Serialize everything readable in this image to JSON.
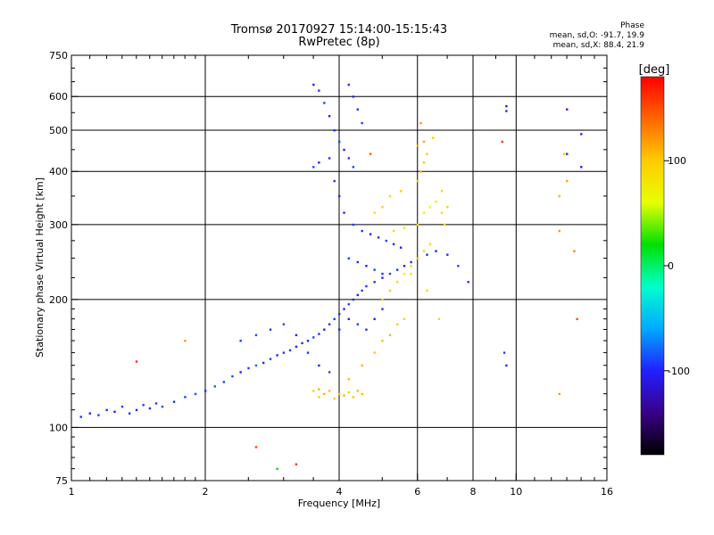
{
  "title": {
    "line1": "Tromsø 20170927 15:14:00-15:15:43",
    "line2": "RwPretec (8p)"
  },
  "phase_info": {
    "heading": "Phase",
    "stats_o": "mean, sd,O: -91.7, 19.9",
    "stats_x": "mean, sd,X: 88.4, 21.9"
  },
  "colorbar": {
    "unit_label": "[deg]",
    "range": [
      -180,
      180
    ],
    "ticks": [
      {
        "value": 100,
        "label": "100"
      },
      {
        "value": 0,
        "label": "0"
      },
      {
        "value": -100,
        "label": "-100"
      }
    ],
    "stops": [
      "#000000",
      "#3a0088",
      "#2020ff",
      "#00aaff",
      "#00ffcc",
      "#00e000",
      "#e6ff00",
      "#ffcc00",
      "#ff6600",
      "#ff0000"
    ]
  },
  "chart_data": {
    "type": "scatter",
    "title": "Tromsø 20170927 15:14:00-15:15:43",
    "subtitle": "RwPretec (8p)",
    "xlabel": "Frequency [MHz]",
    "ylabel": "Stationary phase Virtual Height [km]",
    "xscale": "log",
    "yscale": "log",
    "xlim": [
      1,
      16
    ],
    "ylim": [
      75,
      750
    ],
    "x_ticks": [
      {
        "value": 1,
        "label": "1"
      },
      {
        "value": 2,
        "label": "2"
      },
      {
        "value": 4,
        "label": "4"
      },
      {
        "value": 6,
        "label": "6"
      },
      {
        "value": 8,
        "label": "8"
      },
      {
        "value": 10,
        "label": "10"
      },
      {
        "value": 16,
        "label": "16"
      }
    ],
    "y_ticks": [
      {
        "value": 75,
        "label": "75"
      },
      {
        "value": 100,
        "label": "100"
      },
      {
        "value": 200,
        "label": "200"
      },
      {
        "value": 300,
        "label": "300"
      },
      {
        "value": 400,
        "label": "400"
      },
      {
        "value": 500,
        "label": "500"
      },
      {
        "value": 600,
        "label": "600"
      },
      {
        "value": 750,
        "label": "750"
      }
    ],
    "grid_x": [
      2,
      4,
      6,
      8,
      10
    ],
    "grid_y": [
      100,
      200,
      300,
      400,
      500,
      600
    ],
    "grid": true,
    "color_by": "phase [deg]",
    "series": [
      {
        "values": [
          [
            1.05,
            106,
            -95
          ],
          [
            1.1,
            108,
            -100
          ],
          [
            1.15,
            107,
            -90
          ],
          [
            1.2,
            110,
            -95
          ],
          [
            1.25,
            109,
            -100
          ],
          [
            1.3,
            112,
            -90
          ],
          [
            1.35,
            108,
            -95
          ],
          [
            1.4,
            110,
            -100
          ],
          [
            1.45,
            113,
            -90
          ],
          [
            1.5,
            111,
            -95
          ],
          [
            1.55,
            114,
            -92
          ],
          [
            1.6,
            112,
            -85
          ],
          [
            1.7,
            115,
            -95
          ],
          [
            1.8,
            118,
            -90
          ],
          [
            1.9,
            120,
            -85
          ],
          [
            2.0,
            122,
            -95
          ],
          [
            2.1,
            125,
            -80
          ],
          [
            2.2,
            128,
            -90
          ],
          [
            2.3,
            132,
            -85
          ],
          [
            2.4,
            135,
            -100
          ],
          [
            2.5,
            138,
            -90
          ],
          [
            2.6,
            140,
            -80
          ],
          [
            2.7,
            142,
            -95
          ],
          [
            2.8,
            145,
            -90
          ],
          [
            2.9,
            148,
            -100
          ],
          [
            3.0,
            150,
            -95
          ],
          [
            3.1,
            152,
            -90
          ],
          [
            3.2,
            155,
            -100
          ],
          [
            3.3,
            158,
            -95
          ],
          [
            3.4,
            160,
            -100
          ],
          [
            3.5,
            163,
            -90
          ],
          [
            3.6,
            166,
            -95
          ],
          [
            3.7,
            170,
            -100
          ],
          [
            3.8,
            175,
            -95
          ],
          [
            3.9,
            180,
            -90
          ],
          [
            4.0,
            185,
            -95
          ],
          [
            4.1,
            190,
            -100
          ],
          [
            4.2,
            195,
            -90
          ],
          [
            4.3,
            200,
            -95
          ],
          [
            4.4,
            205,
            -100
          ],
          [
            4.5,
            210,
            -90
          ],
          [
            4.6,
            215,
            -95
          ],
          [
            4.8,
            220,
            -95
          ],
          [
            5.0,
            225,
            -100
          ],
          [
            5.2,
            230,
            -90
          ],
          [
            5.4,
            235,
            -95
          ],
          [
            5.6,
            240,
            -100
          ],
          [
            5.8,
            245,
            -95
          ],
          [
            6.0,
            250,
            -90
          ],
          [
            6.3,
            255,
            -95
          ],
          [
            6.6,
            260,
            -100
          ],
          [
            7.0,
            255,
            -95
          ],
          [
            7.4,
            240,
            -90
          ],
          [
            7.8,
            220,
            -95
          ],
          [
            2.4,
            160,
            -90
          ],
          [
            2.6,
            165,
            -85
          ],
          [
            2.8,
            170,
            -95
          ],
          [
            3.0,
            175,
            -90
          ],
          [
            3.2,
            165,
            -100
          ],
          [
            3.4,
            150,
            -95
          ],
          [
            3.6,
            140,
            -100
          ],
          [
            3.8,
            135,
            -90
          ],
          [
            4.0,
            170,
            -95
          ],
          [
            4.2,
            180,
            -100
          ],
          [
            4.4,
            175,
            -90
          ],
          [
            4.6,
            170,
            -95
          ],
          [
            4.8,
            180,
            -100
          ],
          [
            5.0,
            190,
            -95
          ],
          [
            3.5,
            640,
            -100
          ],
          [
            3.6,
            620,
            -95
          ],
          [
            3.7,
            580,
            -90
          ],
          [
            3.8,
            540,
            -100
          ],
          [
            3.9,
            500,
            -95
          ],
          [
            4.0,
            470,
            -90
          ],
          [
            4.1,
            450,
            -100
          ],
          [
            4.2,
            430,
            -95
          ],
          [
            4.3,
            410,
            -90
          ],
          [
            4.2,
            640,
            -95
          ],
          [
            4.3,
            600,
            -100
          ],
          [
            4.4,
            560,
            -95
          ],
          [
            4.5,
            520,
            -90
          ],
          [
            3.8,
            430,
            -95
          ],
          [
            3.6,
            420,
            -100
          ],
          [
            3.5,
            410,
            -90
          ],
          [
            3.9,
            380,
            -95
          ],
          [
            4.0,
            350,
            -100
          ],
          [
            4.1,
            320,
            -95
          ],
          [
            4.3,
            300,
            -90
          ],
          [
            4.5,
            290,
            -95
          ],
          [
            4.7,
            285,
            -100
          ],
          [
            4.9,
            280,
            -95
          ],
          [
            5.1,
            275,
            -90
          ],
          [
            5.3,
            270,
            -95
          ],
          [
            5.5,
            265,
            -100
          ],
          [
            4.2,
            250,
            -90
          ],
          [
            4.4,
            245,
            -95
          ],
          [
            4.6,
            240,
            -100
          ],
          [
            4.8,
            235,
            -90
          ],
          [
            5.0,
            230,
            -95
          ],
          [
            9.5,
            570,
            -100
          ],
          [
            9.5,
            555,
            -95
          ],
          [
            13,
            560,
            -100
          ],
          [
            13,
            440,
            -95
          ],
          [
            14,
            410,
            -100
          ],
          [
            14,
            490,
            -95
          ],
          [
            9.4,
            150,
            -90
          ],
          [
            9.5,
            140,
            -95
          ]
        ]
      },
      {
        "values": [
          [
            4.0,
            120,
            105
          ],
          [
            4.1,
            119,
            110
          ],
          [
            4.2,
            121,
            100
          ],
          [
            4.3,
            118,
            105
          ],
          [
            3.6,
            118,
            100
          ],
          [
            3.7,
            120,
            110
          ],
          [
            3.8,
            122,
            105
          ],
          [
            3.9,
            117,
            100
          ],
          [
            4.4,
            122,
            110
          ],
          [
            4.5,
            120,
            105
          ],
          [
            3.5,
            122,
            100
          ],
          [
            3.6,
            123,
            110
          ],
          [
            4.2,
            130,
            105
          ],
          [
            4.5,
            140,
            110
          ],
          [
            4.8,
            150,
            100
          ],
          [
            5.0,
            160,
            105
          ],
          [
            5.2,
            165,
            110
          ],
          [
            5.4,
            175,
            100
          ],
          [
            5.6,
            180,
            95
          ],
          [
            5.0,
            200,
            90
          ],
          [
            5.2,
            210,
            100
          ],
          [
            5.4,
            220,
            90
          ],
          [
            5.6,
            230,
            70
          ],
          [
            5.8,
            240,
            85
          ],
          [
            6.0,
            250,
            95
          ],
          [
            6.2,
            260,
            90
          ],
          [
            6.4,
            270,
            85
          ],
          [
            6.0,
            300,
            90
          ],
          [
            6.2,
            320,
            70
          ],
          [
            6.4,
            330,
            60
          ],
          [
            6.6,
            340,
            80
          ],
          [
            6.8,
            320,
            85
          ],
          [
            6.0,
            380,
            100
          ],
          [
            6.1,
            400,
            110
          ],
          [
            6.2,
            420,
            105
          ],
          [
            6.3,
            440,
            100
          ],
          [
            6.0,
            460,
            110
          ],
          [
            6.2,
            470,
            115
          ],
          [
            6.1,
            520,
            120
          ],
          [
            5.5,
            360,
            95
          ],
          [
            5.2,
            350,
            90
          ],
          [
            5.0,
            330,
            95
          ],
          [
            4.8,
            320,
            85
          ],
          [
            5.3,
            290,
            90
          ],
          [
            5.6,
            295,
            85
          ],
          [
            2.6,
            90,
            150
          ],
          [
            3.2,
            82,
            160
          ],
          [
            2.9,
            80,
            20
          ],
          [
            1.4,
            143,
            160
          ],
          [
            1.8,
            160,
            120
          ],
          [
            9.3,
            470,
            160
          ],
          [
            12.5,
            120,
            120
          ],
          [
            12.5,
            290,
            120
          ],
          [
            13,
            380,
            115
          ],
          [
            13.5,
            260,
            130
          ],
          [
            13.7,
            180,
            150
          ],
          [
            12.5,
            350,
            110
          ],
          [
            12.8,
            440,
            100
          ],
          [
            4.7,
            440,
            140
          ],
          [
            6.5,
            480,
            100
          ],
          [
            6.8,
            360,
            90
          ],
          [
            7.0,
            330,
            95
          ],
          [
            6.9,
            300,
            80
          ],
          [
            5.8,
            230,
            80
          ],
          [
            6.3,
            210,
            90
          ],
          [
            6.7,
            180,
            90
          ]
        ]
      }
    ]
  }
}
